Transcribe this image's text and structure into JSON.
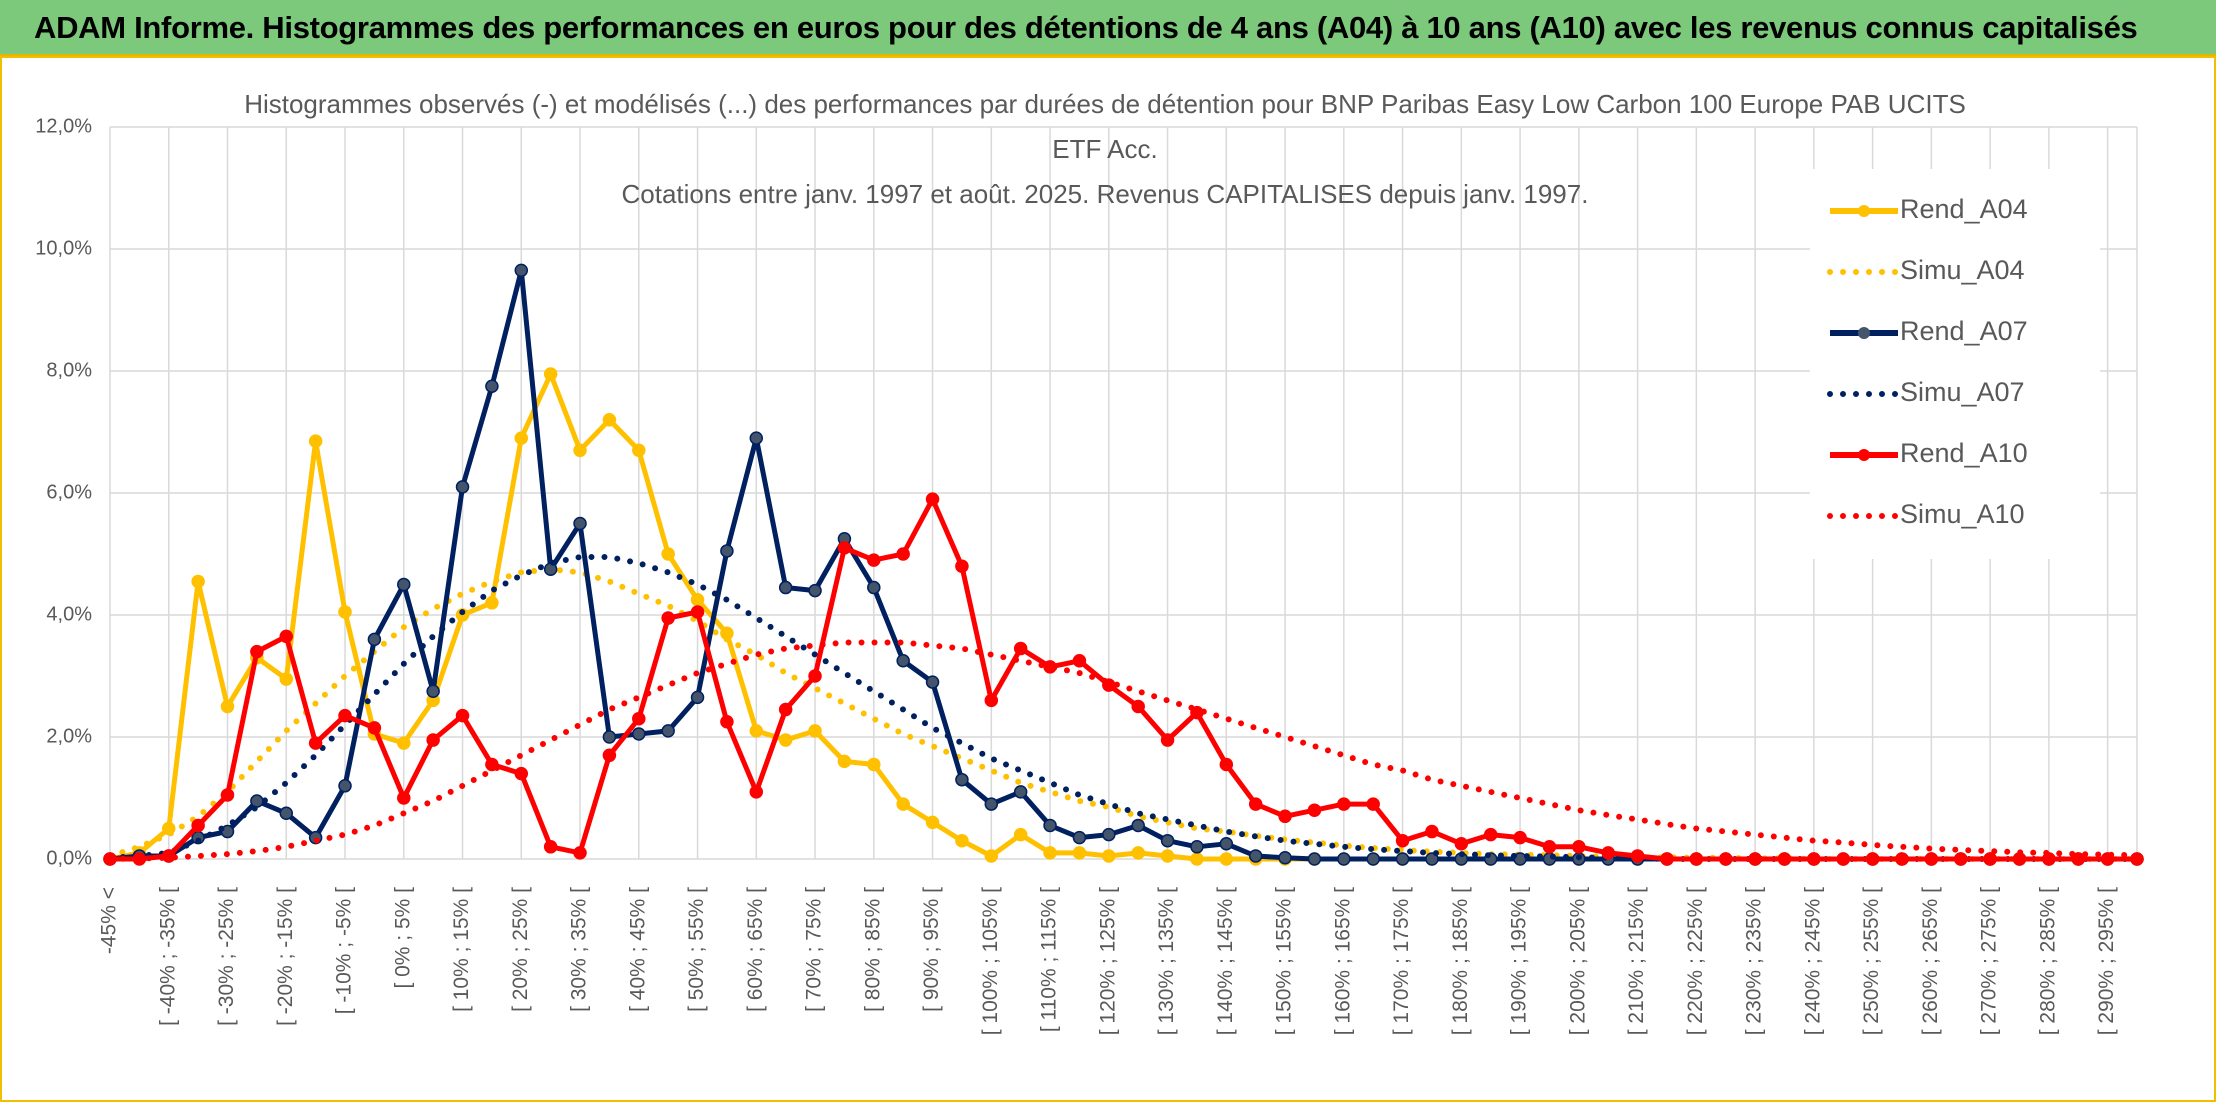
{
  "header": {
    "title": "ADAM Informe. Histogrammes des performances en euros pour des détentions de 4 ans (A04) à 10 ans (A10) avec les revenus connus capitalisés"
  },
  "chart_data": {
    "type": "line",
    "title": [
      "Histogrammes observés (-) et modélisés (...) des performances par durées de détention pour BNP Paribas Easy Low Carbon 100 Europe PAB UCITS",
      "ETF Acc.",
      "Cotations entre janv. 1997 et août. 2025. Revenus CAPITALISES depuis janv. 1997."
    ],
    "categories": [
      "-45% <",
      null,
      "[ -40% ; -35% [",
      null,
      "[ -30% ; -25% [",
      null,
      "[ -20% ; -15% [",
      null,
      "[ -10% ; -5% [",
      null,
      "[ 0% ; 5% [",
      null,
      "[ 10% ; 15% [",
      null,
      "[ 20% ; 25% [",
      null,
      "[ 30% ; 35% [",
      null,
      "[ 40% ; 45% [",
      null,
      "[ 50% ; 55% [",
      null,
      "[ 60% ; 65% [",
      null,
      "[ 70% ; 75% [",
      null,
      "[ 80% ; 85% [",
      null,
      "[ 90% ; 95% [",
      null,
      "[ 100% ; 105% [",
      null,
      "[ 110% ; 115% [",
      null,
      "[ 120% ; 125% [",
      null,
      "[ 130% ; 135% [",
      null,
      "[ 140% ; 145% [",
      null,
      "[ 150% ; 155% [",
      null,
      "[ 160% ; 165% [",
      null,
      "[ 170% ; 175% [",
      null,
      "[ 180% ; 185% [",
      null,
      "[ 190% ; 195% [",
      null,
      "[ 200% ; 205% [",
      null,
      "[ 210% ; 215% [",
      null,
      "[ 220% ; 225% [",
      null,
      "[ 230% ; 235% [",
      null,
      "[ 240% ; 245% [",
      null,
      "[ 250% ; 255% [",
      null,
      "[ 260% ; 265% [",
      null,
      "[ 270% ; 275% [",
      null,
      "[ 280% ; 285% [",
      null,
      "[ 290% ; 295% [",
      null
    ],
    "series": [
      {
        "name": "Rend_A04",
        "color": "#FFC000",
        "style": "solid",
        "markers": true,
        "values": [
          0,
          0.1,
          0.5,
          4.55,
          2.5,
          3.3,
          2.95,
          6.85,
          4.05,
          2.05,
          1.9,
          2.6,
          4.0,
          4.2,
          6.9,
          7.95,
          6.7,
          7.2,
          6.7,
          5.0,
          4.25,
          3.7,
          2.1,
          1.95,
          2.1,
          1.6,
          1.55,
          0.9,
          0.6,
          0.3,
          0.05,
          0.4,
          0.1,
          0.1,
          0.05,
          0.1,
          0.05,
          0,
          0,
          0,
          0,
          0,
          0,
          0,
          0,
          0,
          0,
          0,
          0,
          0,
          0,
          0,
          0,
          0,
          0,
          0,
          0,
          0,
          0,
          0,
          0,
          0,
          0,
          0,
          0,
          0,
          0,
          0,
          0,
          0
        ]
      },
      {
        "name": "Simu_A04",
        "color": "#FFC000",
        "style": "dotted",
        "markers": false,
        "values": [
          0.05,
          0.2,
          0.4,
          0.7,
          1.1,
          1.6,
          2.1,
          2.55,
          3.0,
          3.4,
          3.8,
          4.1,
          4.35,
          4.55,
          4.7,
          4.75,
          4.7,
          4.55,
          4.35,
          4.15,
          3.9,
          3.6,
          3.35,
          3.05,
          2.8,
          2.55,
          2.3,
          2.05,
          1.85,
          1.65,
          1.45,
          1.25,
          1.1,
          0.95,
          0.85,
          0.7,
          0.6,
          0.5,
          0.45,
          0.38,
          0.32,
          0.27,
          0.22,
          0.18,
          0.15,
          0.12,
          0.1,
          0.08,
          0.07,
          0.06,
          0.05,
          0.04,
          0.03,
          0.03,
          0.02,
          0.02,
          0.01,
          0.01,
          0,
          0,
          0,
          0,
          0,
          0,
          0,
          0,
          0,
          0,
          0,
          0
        ]
      },
      {
        "name": "Rend_A07",
        "color": "#002060",
        "style": "solid",
        "markers": true,
        "values": [
          0,
          0.05,
          0.05,
          0.35,
          0.45,
          0.95,
          0.75,
          0.35,
          1.2,
          3.6,
          4.5,
          2.75,
          6.1,
          7.75,
          9.65,
          4.75,
          5.5,
          2.0,
          2.05,
          2.1,
          2.65,
          5.05,
          6.9,
          4.45,
          4.4,
          5.25,
          4.45,
          3.25,
          2.9,
          1.3,
          0.9,
          1.1,
          0.55,
          0.35,
          0.4,
          0.55,
          0.3,
          0.2,
          0.25,
          0.05,
          0.02,
          0,
          0,
          0,
          0,
          0,
          0,
          0,
          0,
          0,
          0,
          0,
          0,
          0,
          0,
          0,
          0,
          0,
          0,
          0,
          0,
          0,
          0,
          0,
          0,
          0,
          0,
          0,
          0,
          0
        ]
      },
      {
        "name": "Simu_A07",
        "color": "#002060",
        "style": "dotted",
        "markers": false,
        "values": [
          0.02,
          0.05,
          0.1,
          0.3,
          0.55,
          0.85,
          1.25,
          1.7,
          2.2,
          2.7,
          3.2,
          3.65,
          4.05,
          4.4,
          4.65,
          4.85,
          4.95,
          4.95,
          4.85,
          4.7,
          4.5,
          4.25,
          3.95,
          3.65,
          3.35,
          3.05,
          2.75,
          2.45,
          2.15,
          1.9,
          1.65,
          1.45,
          1.25,
          1.05,
          0.9,
          0.75,
          0.65,
          0.55,
          0.45,
          0.37,
          0.3,
          0.25,
          0.2,
          0.16,
          0.13,
          0.1,
          0.08,
          0.06,
          0.05,
          0.04,
          0.03,
          0.02,
          0.01,
          0,
          0,
          0,
          0,
          0,
          0,
          0,
          0,
          0,
          0,
          0,
          0,
          0,
          0,
          0,
          0,
          0
        ]
      },
      {
        "name": "Rend_A10",
        "color": "#FF0000",
        "style": "solid",
        "markers": true,
        "values": [
          0,
          0,
          0.05,
          0.55,
          1.05,
          3.4,
          3.65,
          1.9,
          2.35,
          2.15,
          1.0,
          1.95,
          2.35,
          1.55,
          1.4,
          0.2,
          0.1,
          1.7,
          2.3,
          3.95,
          4.05,
          2.25,
          1.1,
          2.45,
          3.0,
          5.1,
          4.9,
          5.0,
          5.9,
          4.8,
          2.6,
          3.45,
          3.15,
          3.25,
          2.85,
          2.5,
          1.95,
          2.4,
          1.55,
          0.9,
          0.7,
          0.8,
          0.9,
          0.9,
          0.3,
          0.45,
          0.25,
          0.4,
          0.35,
          0.2,
          0.2,
          0.1,
          0.05,
          0,
          0,
          0,
          0,
          0,
          0,
          0,
          0,
          0,
          0,
          0,
          0,
          0,
          0,
          0,
          0,
          0
        ]
      },
      {
        "name": "Simu_A10",
        "color": "#FF0000",
        "style": "dotted",
        "markers": false,
        "values": [
          0,
          0.01,
          0.02,
          0.05,
          0.08,
          0.13,
          0.2,
          0.3,
          0.4,
          0.55,
          0.75,
          0.95,
          1.2,
          1.45,
          1.7,
          1.95,
          2.2,
          2.45,
          2.65,
          2.85,
          3.05,
          3.2,
          3.35,
          3.45,
          3.5,
          3.55,
          3.55,
          3.55,
          3.5,
          3.45,
          3.35,
          3.25,
          3.15,
          3.05,
          2.9,
          2.75,
          2.6,
          2.45,
          2.3,
          2.15,
          2.0,
          1.85,
          1.7,
          1.55,
          1.45,
          1.3,
          1.2,
          1.1,
          1.0,
          0.9,
          0.8,
          0.72,
          0.65,
          0.57,
          0.5,
          0.45,
          0.4,
          0.35,
          0.3,
          0.27,
          0.23,
          0.2,
          0.17,
          0.15,
          0.13,
          0.11,
          0.1,
          0.08,
          0.07,
          0.06
        ]
      }
    ],
    "ylim": [
      0,
      12
    ],
    "yticks": [
      {
        "value": 0,
        "label": "0,0%"
      },
      {
        "value": 2,
        "label": "2,0%"
      },
      {
        "value": 4,
        "label": "4,0%"
      },
      {
        "value": 6,
        "label": "6,0%"
      },
      {
        "value": 8,
        "label": "8,0%"
      },
      {
        "value": 10,
        "label": "10,0%"
      },
      {
        "value": 12,
        "label": "12,0%"
      }
    ],
    "grid": true,
    "legend": "right"
  }
}
